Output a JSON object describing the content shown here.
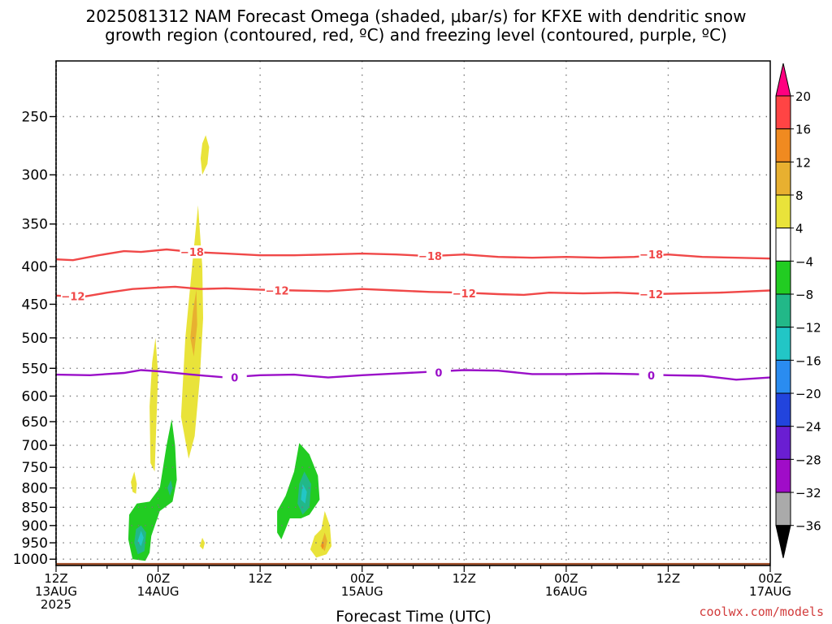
{
  "chart_data": {
    "type": "heatmap",
    "title_line1": "2025081312 NAM Forecast Omega (shaded, μbar/s) for KFXE with dendritic snow",
    "title_line2": "growth region (contoured, red, ºC) and freezing level (contoured, purple, ºC)",
    "xlabel": "Forecast Time (UTC)",
    "ylabel": "",
    "x_ticks": [
      {
        "hour": 0,
        "l1": "12Z",
        "l2": "13AUG",
        "l3": "2025"
      },
      {
        "hour": 12,
        "l1": "00Z",
        "l2": "14AUG",
        "l3": ""
      },
      {
        "hour": 24,
        "l1": "12Z",
        "l2": "",
        "l3": ""
      },
      {
        "hour": 36,
        "l1": "00Z",
        "l2": "15AUG",
        "l3": ""
      },
      {
        "hour": 48,
        "l1": "12Z",
        "l2": "",
        "l3": ""
      },
      {
        "hour": 60,
        "l1": "00Z",
        "l2": "16AUG",
        "l3": ""
      },
      {
        "hour": 72,
        "l1": "12Z",
        "l2": "",
        "l3": ""
      },
      {
        "hour": 84,
        "l1": "00Z",
        "l2": "17AUG",
        "l3": ""
      }
    ],
    "x_range_hours": [
      0,
      84
    ],
    "y_range_hPa": [
      1020,
      210
    ],
    "y_ticks": [
      250,
      300,
      350,
      400,
      450,
      500,
      550,
      600,
      650,
      700,
      750,
      800,
      850,
      900,
      950,
      1000
    ],
    "y_log": true,
    "grid": true,
    "colorbar": {
      "ticks": [
        "20",
        "16",
        "12",
        "8",
        "4",
        "−4",
        "−8",
        "−12",
        "−16",
        "−20",
        "−24",
        "−28",
        "−32",
        "−36"
      ],
      "colors": [
        "#ff0080",
        "#ff4444",
        "#f08a20",
        "#e8b030",
        "#e9e33a",
        "#ffffff",
        "#22cc22",
        "#22b888",
        "#22c6c6",
        "#2a8cf0",
        "#2244dd",
        "#6a1ed2",
        "#a00cc8",
        "#aaaaaa",
        "#000000"
      ]
    },
    "isotherms": [
      {
        "label": "−18",
        "color": "#f04848",
        "points": [
          [
            0,
            391
          ],
          [
            2,
            392
          ],
          [
            5,
            386
          ],
          [
            8,
            381
          ],
          [
            10,
            382
          ],
          [
            13,
            379
          ],
          [
            16,
            382
          ],
          [
            20,
            384
          ],
          [
            24,
            386
          ],
          [
            28,
            386
          ],
          [
            32,
            385
          ],
          [
            36,
            384
          ],
          [
            40,
            385
          ],
          [
            44,
            387
          ],
          [
            48,
            385
          ],
          [
            52,
            388
          ],
          [
            56,
            389
          ],
          [
            60,
            388
          ],
          [
            64,
            389
          ],
          [
            68,
            388
          ],
          [
            72,
            385
          ],
          [
            76,
            388
          ],
          [
            80,
            389
          ],
          [
            84,
            390
          ]
        ],
        "labels_at": [
          [
            16,
            382
          ],
          [
            44,
            387
          ],
          [
            70,
            385
          ]
        ]
      },
      {
        "label": "−12",
        "color": "#f04848",
        "points": [
          [
            0,
            438
          ],
          [
            3,
            440
          ],
          [
            6,
            434
          ],
          [
            9,
            429
          ],
          [
            12,
            427
          ],
          [
            14,
            426
          ],
          [
            17,
            429
          ],
          [
            20,
            428
          ],
          [
            24,
            430
          ],
          [
            28,
            431
          ],
          [
            32,
            432
          ],
          [
            36,
            429
          ],
          [
            40,
            431
          ],
          [
            44,
            433
          ],
          [
            48,
            434
          ],
          [
            52,
            436
          ],
          [
            55,
            437
          ],
          [
            58,
            434
          ],
          [
            62,
            435
          ],
          [
            66,
            434
          ],
          [
            70,
            436
          ],
          [
            74,
            435
          ],
          [
            78,
            434
          ],
          [
            84,
            431
          ]
        ],
        "labels_at": [
          [
            2,
            439
          ],
          [
            26,
            431
          ],
          [
            48,
            435
          ],
          [
            70,
            436
          ]
        ]
      },
      {
        "label": "0",
        "color": "#9a0fc8",
        "points": [
          [
            0,
            561
          ],
          [
            4,
            562
          ],
          [
            8,
            558
          ],
          [
            10,
            553
          ],
          [
            12,
            555
          ],
          [
            16,
            561
          ],
          [
            20,
            566
          ],
          [
            24,
            562
          ],
          [
            28,
            561
          ],
          [
            32,
            566
          ],
          [
            36,
            562
          ],
          [
            40,
            559
          ],
          [
            44,
            556
          ],
          [
            48,
            553
          ],
          [
            52,
            554
          ],
          [
            56,
            560
          ],
          [
            60,
            560
          ],
          [
            64,
            559
          ],
          [
            68,
            560
          ],
          [
            72,
            562
          ],
          [
            76,
            563
          ],
          [
            80,
            570
          ],
          [
            84,
            566
          ]
        ],
        "labels_at": [
          [
            21,
            566
          ],
          [
            45,
            557
          ],
          [
            70,
            562
          ]
        ]
      }
    ],
    "omega_regions": [
      {
        "value": 4,
        "color": "#e9e33a",
        "points": [
          [
            17.6,
            265
          ],
          [
            18.0,
            275
          ],
          [
            17.8,
            290
          ],
          [
            17.2,
            300
          ],
          [
            17.0,
            285
          ],
          [
            17.2,
            272
          ]
        ]
      },
      {
        "value": 4,
        "color": "#e9e33a",
        "points": [
          [
            16.7,
            330
          ],
          [
            17.2,
            400
          ],
          [
            17.3,
            470
          ],
          [
            16.9,
            570
          ],
          [
            16.3,
            680
          ],
          [
            15.6,
            730
          ],
          [
            14.7,
            640
          ],
          [
            15.2,
            500
          ],
          [
            16.0,
            400
          ]
        ]
      },
      {
        "value": 8,
        "color": "#e8b030",
        "points": [
          [
            16.5,
            430
          ],
          [
            16.6,
            480
          ],
          [
            16.2,
            530
          ],
          [
            15.8,
            500
          ],
          [
            16.1,
            460
          ]
        ]
      },
      {
        "value": 4,
        "color": "#e9e33a",
        "points": [
          [
            11.7,
            500
          ],
          [
            12.0,
            560
          ],
          [
            11.8,
            650
          ],
          [
            11.6,
            760
          ],
          [
            11.1,
            740
          ],
          [
            11.0,
            620
          ],
          [
            11.3,
            540
          ]
        ]
      },
      {
        "value": 4,
        "color": "#e9e33a",
        "points": [
          [
            9.2,
            760
          ],
          [
            9.5,
            790
          ],
          [
            9.4,
            815
          ],
          [
            9.0,
            810
          ],
          [
            8.8,
            785
          ]
        ]
      },
      {
        "value": -8,
        "color": "#22cc22",
        "points": [
          [
            13.6,
            645
          ],
          [
            14.0,
            700
          ],
          [
            14.2,
            780
          ],
          [
            13.7,
            835
          ],
          [
            12.2,
            860
          ],
          [
            11.2,
            930
          ],
          [
            11.0,
            980
          ],
          [
            10.5,
            1005
          ],
          [
            9.0,
            1000
          ],
          [
            8.5,
            940
          ],
          [
            8.6,
            870
          ],
          [
            9.5,
            840
          ],
          [
            11.0,
            835
          ],
          [
            12.2,
            800
          ],
          [
            13.0,
            700
          ]
        ]
      },
      {
        "value": -12,
        "color": "#22b888",
        "points": [
          [
            13.5,
            780
          ],
          [
            13.7,
            800
          ],
          [
            13.4,
            820
          ],
          [
            13.1,
            800
          ]
        ]
      },
      {
        "value": -12,
        "color": "#22b888",
        "points": [
          [
            10.0,
            900
          ],
          [
            10.6,
            920
          ],
          [
            10.4,
            975
          ],
          [
            9.6,
            985
          ],
          [
            9.2,
            950
          ],
          [
            9.4,
            910
          ]
        ]
      },
      {
        "value": -16,
        "color": "#22c6c6",
        "points": [
          [
            10.0,
            915
          ],
          [
            10.3,
            935
          ],
          [
            10.0,
            960
          ],
          [
            9.6,
            945
          ]
        ]
      },
      {
        "value": 4,
        "color": "#e9e33a",
        "points": [
          [
            17.2,
            935
          ],
          [
            17.5,
            950
          ],
          [
            17.3,
            970
          ],
          [
            16.9,
            960
          ]
        ]
      },
      {
        "value": -8,
        "color": "#22cc22",
        "points": [
          [
            28.6,
            695
          ],
          [
            29.8,
            720
          ],
          [
            30.8,
            770
          ],
          [
            31.0,
            830
          ],
          [
            29.8,
            870
          ],
          [
            28.8,
            880
          ],
          [
            27.5,
            880
          ],
          [
            26.5,
            940
          ],
          [
            26.0,
            920
          ],
          [
            26.0,
            860
          ],
          [
            27.0,
            820
          ],
          [
            28.0,
            760
          ]
        ]
      },
      {
        "value": -12,
        "color": "#22b888",
        "points": [
          [
            29.2,
            760
          ],
          [
            30.0,
            790
          ],
          [
            29.8,
            850
          ],
          [
            29.0,
            870
          ],
          [
            28.4,
            840
          ],
          [
            28.6,
            790
          ]
        ]
      },
      {
        "value": -16,
        "color": "#22c6c6",
        "points": [
          [
            29.0,
            790
          ],
          [
            29.5,
            810
          ],
          [
            29.3,
            840
          ],
          [
            28.8,
            830
          ]
        ]
      },
      {
        "value": 4,
        "color": "#e9e33a",
        "points": [
          [
            31.6,
            860
          ],
          [
            32.2,
            900
          ],
          [
            32.4,
            960
          ],
          [
            31.8,
            985
          ],
          [
            30.6,
            995
          ],
          [
            29.9,
            970
          ],
          [
            30.4,
            930
          ],
          [
            31.2,
            910
          ]
        ]
      },
      {
        "value": 8,
        "color": "#e8b030",
        "points": [
          [
            31.6,
            920
          ],
          [
            31.9,
            945
          ],
          [
            31.6,
            975
          ],
          [
            31.1,
            960
          ]
        ]
      },
      {
        "value": 12,
        "color": "#f08a20",
        "points": [
          [
            31.4,
            945
          ],
          [
            31.5,
            960
          ],
          [
            31.3,
            970
          ],
          [
            31.2,
            958
          ]
        ]
      }
    ],
    "terrain": {
      "color": "#a0522d",
      "top_hPa": 1012
    }
  },
  "credit": "coolwx.com/models"
}
